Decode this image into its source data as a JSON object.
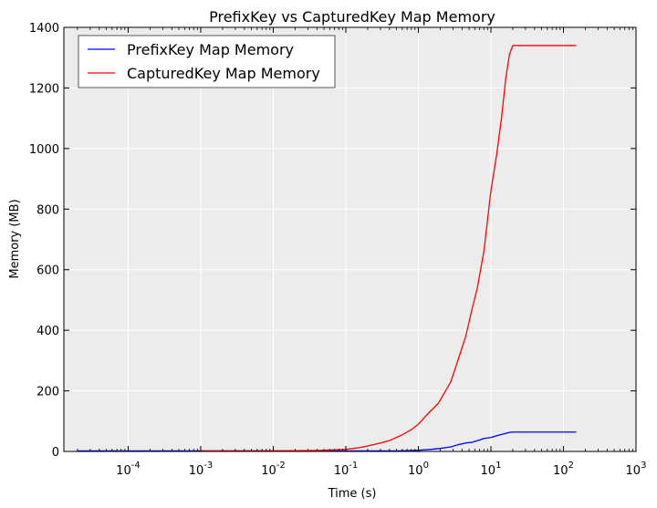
{
  "chart_data": {
    "type": "line",
    "title": "PrefixKey vs CapturedKey Map Memory",
    "xlabel": "Time (s)",
    "ylabel": "Memory (MB)",
    "xscale": "log",
    "xlim": [
      1.3e-05,
      1000
    ],
    "ylim": [
      0,
      1400
    ],
    "grid": true,
    "legend_position": "top-left",
    "colors": {
      "background": "#ececec",
      "grid": "#ffffff"
    },
    "x_ticks": [
      {
        "value": 0.0001,
        "base": "10",
        "exp": "-4"
      },
      {
        "value": 0.001,
        "base": "10",
        "exp": "-3"
      },
      {
        "value": 0.01,
        "base": "10",
        "exp": "-2"
      },
      {
        "value": 0.1,
        "base": "10",
        "exp": "-1"
      },
      {
        "value": 1,
        "base": "10",
        "exp": "0"
      },
      {
        "value": 10,
        "base": "10",
        "exp": "1"
      },
      {
        "value": 100,
        "base": "10",
        "exp": "2"
      },
      {
        "value": 1000,
        "base": "10",
        "exp": "3"
      }
    ],
    "y_ticks": [
      0,
      200,
      400,
      600,
      800,
      1000,
      1200,
      1400
    ],
    "series": [
      {
        "name": "PrefixKey Map Memory",
        "color": "#0000ff",
        "points": [
          [
            2e-05,
            2
          ],
          [
            0.0001,
            2
          ],
          [
            0.001,
            2
          ],
          [
            0.01,
            2
          ],
          [
            0.1,
            2
          ],
          [
            0.5,
            2
          ],
          [
            0.8,
            3
          ],
          [
            1.0,
            4
          ],
          [
            1.5,
            7
          ],
          [
            2,
            10
          ],
          [
            2.8,
            15
          ],
          [
            3.5,
            22
          ],
          [
            4.5,
            28
          ],
          [
            5.5,
            30
          ],
          [
            7,
            38
          ],
          [
            8,
            43
          ],
          [
            10,
            46
          ],
          [
            12,
            52
          ],
          [
            15,
            58
          ],
          [
            18,
            63
          ],
          [
            20,
            64
          ],
          [
            50,
            64
          ],
          [
            150,
            64
          ]
        ]
      },
      {
        "name": "CapturedKey Map Memory",
        "color": "#ff0000",
        "points": [
          [
            0.001,
            2
          ],
          [
            0.01,
            2
          ],
          [
            0.03,
            3
          ],
          [
            0.05,
            4
          ],
          [
            0.08,
            6
          ],
          [
            0.1,
            7
          ],
          [
            0.15,
            12
          ],
          [
            0.2,
            18
          ],
          [
            0.3,
            28
          ],
          [
            0.4,
            36
          ],
          [
            0.6,
            55
          ],
          [
            0.8,
            72
          ],
          [
            1.0,
            90
          ],
          [
            1.3,
            120
          ],
          [
            1.9,
            160
          ],
          [
            2.8,
            230
          ],
          [
            3.5,
            300
          ],
          [
            4.5,
            380
          ],
          [
            5.5,
            470
          ],
          [
            6.5,
            540
          ],
          [
            8,
            660
          ],
          [
            10,
            860
          ],
          [
            12,
            980
          ],
          [
            14,
            1100
          ],
          [
            16,
            1230
          ],
          [
            18,
            1310
          ],
          [
            20,
            1340
          ],
          [
            50,
            1340
          ],
          [
            150,
            1340
          ]
        ]
      }
    ]
  }
}
